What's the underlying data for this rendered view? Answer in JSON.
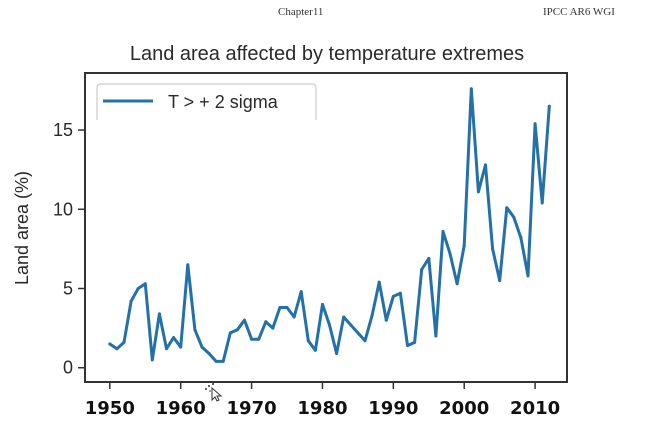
{
  "page_header": {
    "chapter": "Chapter11",
    "report": "IPCC AR6 WGI"
  },
  "chart_data": {
    "type": "line",
    "title": "Land area affected by temperature extremes",
    "xlabel": "",
    "ylabel": "Land area (%)",
    "xlim": [
      1946.5,
      2014.5
    ],
    "ylim": [
      -0.9,
      18.6
    ],
    "xticks": [
      1950,
      1960,
      1970,
      1980,
      1990,
      2000,
      2010
    ],
    "xtick_labels": [
      "1950",
      "1960",
      "1970",
      "1980",
      "1990",
      "2000",
      "2010"
    ],
    "yticks": [
      0,
      5,
      10,
      15
    ],
    "ytick_labels": [
      "0",
      "5",
      "10",
      "15"
    ],
    "grid": false,
    "legend": {
      "position": "top-left",
      "entries": [
        "T > + 2 sigma"
      ]
    },
    "series": [
      {
        "name": "T > + 2 sigma",
        "color": "#2470a8",
        "x": [
          1950,
          1951,
          1952,
          1953,
          1954,
          1955,
          1956,
          1957,
          1958,
          1959,
          1960,
          1961,
          1962,
          1963,
          1964,
          1965,
          1966,
          1967,
          1968,
          1969,
          1970,
          1971,
          1972,
          1973,
          1974,
          1975,
          1976,
          1977,
          1978,
          1979,
          1980,
          1981,
          1982,
          1983,
          1984,
          1985,
          1986,
          1987,
          1988,
          1989,
          1990,
          1991,
          1992,
          1993,
          1994,
          1995,
          1996,
          1997,
          1998,
          1999,
          2000,
          2001,
          2002,
          2003,
          2004,
          2005,
          2006,
          2007,
          2008,
          2009,
          2010,
          2011,
          2012
        ],
        "values": [
          1.5,
          1.2,
          1.6,
          4.2,
          5.0,
          5.3,
          0.5,
          3.4,
          1.2,
          1.9,
          1.3,
          6.5,
          2.4,
          1.3,
          0.9,
          0.4,
          0.4,
          2.2,
          2.4,
          3.0,
          1.8,
          1.8,
          2.9,
          2.5,
          3.8,
          3.8,
          3.2,
          4.8,
          1.7,
          1.1,
          4.0,
          2.7,
          0.9,
          3.2,
          2.7,
          2.2,
          1.7,
          3.3,
          5.4,
          3.0,
          4.5,
          4.7,
          1.4,
          1.6,
          6.2,
          6.9,
          2.0,
          8.6,
          7.2,
          5.3,
          7.7,
          17.6,
          11.1,
          12.8,
          7.5,
          5.5,
          10.1,
          9.5,
          8.2,
          5.8,
          15.4,
          10.4,
          16.5
        ]
      }
    ]
  },
  "overlay": {
    "cursor_icon": "mouse-pointer-busy-icon"
  }
}
